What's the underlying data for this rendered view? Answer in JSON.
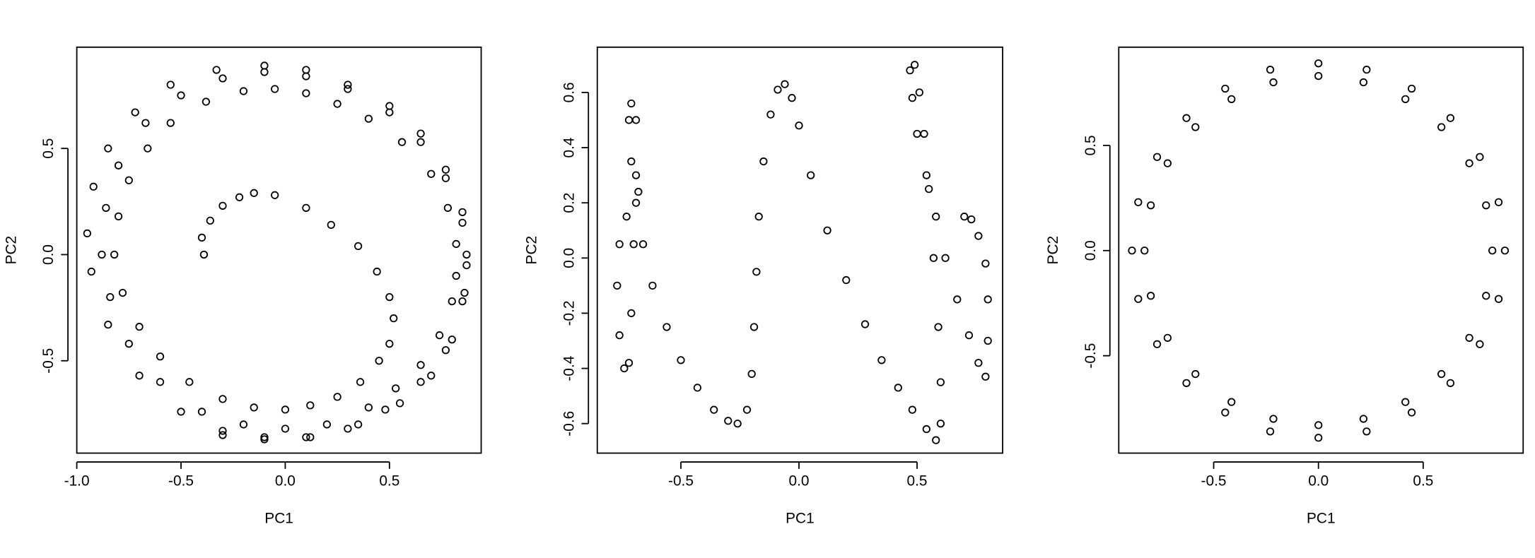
{
  "chart_data": [
    {
      "type": "scatter",
      "xlabel": "PC1",
      "ylabel": "PC2",
      "xlim": [
        -1.0,
        0.94
      ],
      "ylim": [
        -0.935,
        0.977
      ],
      "xticks": [
        {
          "value": -1.0,
          "label": "-1.0"
        },
        -0.5,
        {
          "value": 0,
          "label": "0.0"
        },
        0.5
      ],
      "yticks": [
        -0.5,
        {
          "value": 0,
          "label": "0.0"
        },
        0.5
      ],
      "x": [
        -0.39,
        -0.4,
        -0.36,
        -0.3,
        -0.22,
        -0.15,
        -0.05,
        0.1,
        0.22,
        0.35,
        0.44,
        0.5,
        0.52,
        0.5,
        0.45,
        0.36,
        0.25,
        0.12,
        0.0,
        -0.15,
        -0.3,
        -0.46,
        -0.6,
        -0.7,
        -0.78,
        -0.82,
        -0.8,
        -0.75,
        -0.66,
        -0.55,
        -0.38,
        -0.2,
        -0.05,
        0.1,
        0.25,
        0.4,
        0.56,
        0.7,
        0.78,
        0.82,
        0.82,
        0.8,
        0.74,
        0.65,
        0.53,
        0.4,
        0.2,
        0.0,
        -0.2,
        -0.4,
        -0.6,
        -0.75,
        -0.84,
        -0.88,
        -0.86,
        -0.8,
        -0.67,
        -0.5,
        -0.3,
        -0.1,
        0.1,
        0.3,
        0.5,
        0.65,
        0.77,
        0.85,
        0.87,
        0.85,
        0.77,
        0.65,
        0.48,
        0.3,
        0.1,
        -0.1,
        -0.3,
        -0.5,
        -0.7,
        -0.85,
        -0.93,
        -0.95,
        -0.92,
        -0.85,
        -0.72,
        -0.55,
        -0.33,
        -0.1,
        0.1,
        0.3,
        0.5,
        0.65,
        0.77,
        0.85,
        0.87,
        0.86,
        0.8,
        0.7,
        0.55,
        0.35,
        0.12,
        -0.1,
        -0.3
      ],
      "values": [
        0.0,
        0.08,
        0.16,
        0.23,
        0.27,
        0.29,
        0.28,
        0.22,
        0.14,
        0.04,
        -0.08,
        -0.2,
        -0.3,
        -0.42,
        -0.5,
        -0.6,
        -0.67,
        -0.71,
        -0.73,
        -0.72,
        -0.68,
        -0.6,
        -0.48,
        -0.34,
        -0.18,
        0.0,
        0.18,
        0.35,
        0.5,
        0.62,
        0.72,
        0.77,
        0.78,
        0.76,
        0.71,
        0.64,
        0.53,
        0.38,
        0.22,
        0.05,
        -0.1,
        -0.22,
        -0.38,
        -0.52,
        -0.63,
        -0.72,
        -0.8,
        -0.82,
        -0.8,
        -0.74,
        -0.6,
        -0.42,
        -0.2,
        0.0,
        0.22,
        0.42,
        0.62,
        0.75,
        0.83,
        0.86,
        0.84,
        0.78,
        0.67,
        0.53,
        0.36,
        0.15,
        -0.05,
        -0.22,
        -0.45,
        -0.6,
        -0.73,
        -0.82,
        -0.86,
        -0.86,
        -0.83,
        -0.74,
        -0.57,
        -0.33,
        -0.08,
        0.1,
        0.32,
        0.5,
        0.67,
        0.8,
        0.87,
        0.89,
        0.87,
        0.8,
        0.7,
        0.57,
        0.4,
        0.2,
        0.0,
        -0.18,
        -0.4,
        -0.57,
        -0.7,
        -0.8,
        -0.86,
        -0.87,
        -0.85
      ]
    },
    {
      "type": "scatter",
      "xlabel": "PC1",
      "ylabel": "PC2",
      "xlim": [
        -0.854,
        0.8625
      ],
      "ylim": [
        -0.707,
        0.764
      ],
      "xticks": [
        -0.5,
        {
          "value": 0,
          "label": "0.0"
        },
        0.5
      ],
      "yticks": [
        -0.6,
        -0.4,
        -0.2,
        {
          "value": 0,
          "label": "0.0"
        },
        0.2,
        0.4,
        0.6
      ],
      "x": [
        0.7,
        0.73,
        0.76,
        0.79,
        0.8,
        0.8,
        0.79,
        0.76,
        0.72,
        0.67,
        0.62,
        0.58,
        0.54,
        0.5,
        0.48,
        0.47,
        0.49,
        0.51,
        0.53,
        0.55,
        0.57,
        0.59,
        0.6,
        0.6,
        0.58,
        0.54,
        0.48,
        0.42,
        0.35,
        0.28,
        0.2,
        0.12,
        0.05,
        0.0,
        -0.03,
        -0.06,
        -0.09,
        -0.12,
        -0.15,
        -0.17,
        -0.18,
        -0.19,
        -0.2,
        -0.22,
        -0.26,
        -0.3,
        -0.36,
        -0.43,
        -0.5,
        -0.56,
        -0.62,
        -0.66,
        -0.69,
        -0.71,
        -0.72,
        -0.71,
        -0.69,
        -0.69,
        -0.7,
        -0.71,
        -0.72,
        -0.74,
        -0.76,
        -0.77,
        -0.76,
        -0.73,
        -0.68
      ],
      "values": [
        0.15,
        0.14,
        0.08,
        -0.02,
        -0.15,
        -0.3,
        -0.43,
        -0.38,
        -0.28,
        -0.15,
        0.0,
        0.15,
        0.3,
        0.45,
        0.58,
        0.68,
        0.7,
        0.6,
        0.45,
        0.25,
        0.0,
        -0.25,
        -0.45,
        -0.6,
        -0.66,
        -0.62,
        -0.55,
        -0.47,
        -0.37,
        -0.24,
        -0.08,
        0.1,
        0.3,
        0.48,
        0.58,
        0.63,
        0.61,
        0.52,
        0.35,
        0.15,
        -0.05,
        -0.25,
        -0.42,
        -0.55,
        -0.6,
        -0.59,
        -0.55,
        -0.47,
        -0.37,
        -0.25,
        -0.1,
        0.05,
        0.2,
        0.35,
        0.5,
        0.56,
        0.5,
        0.3,
        0.05,
        -0.2,
        -0.38,
        -0.4,
        -0.28,
        -0.1,
        0.05,
        0.15,
        0.24
      ]
    },
    {
      "type": "scatter",
      "xlabel": "PC1",
      "ylabel": "PC2",
      "xlim": [
        -0.953,
        0.977
      ],
      "ylim": [
        -0.963,
        0.967
      ],
      "xticks": [
        -0.5,
        {
          "value": 0,
          "label": "0.0"
        },
        0.5
      ],
      "yticks": [
        -0.5,
        {
          "value": 0,
          "label": "0.0"
        },
        0.5
      ],
      "x": [
        0.89,
        0.86,
        0.77,
        0.63,
        0.445,
        0.23,
        0,
        -0.23,
        -0.445,
        -0.63,
        -0.77,
        -0.86,
        -0.89,
        -0.86,
        -0.77,
        -0.63,
        -0.445,
        -0.23,
        0,
        0.23,
        0.445,
        0.63,
        0.77,
        0.86,
        0.83,
        0.8,
        0.72,
        0.587,
        0.415,
        0.215,
        0,
        -0.215,
        -0.415,
        -0.587,
        -0.72,
        -0.8,
        -0.83,
        -0.8,
        -0.72,
        -0.587,
        -0.415,
        -0.215,
        0,
        0.215,
        0.415,
        0.587,
        0.72,
        0.8
      ],
      "values": [
        0,
        0.23,
        0.445,
        0.63,
        0.77,
        0.86,
        0.89,
        0.86,
        0.77,
        0.63,
        0.445,
        0.23,
        0,
        -0.23,
        -0.445,
        -0.63,
        -0.77,
        -0.86,
        -0.89,
        -0.86,
        -0.77,
        -0.63,
        -0.445,
        -0.23,
        0,
        0.215,
        0.415,
        0.587,
        0.72,
        0.8,
        0.83,
        0.8,
        0.72,
        0.587,
        0.415,
        0.215,
        0,
        -0.215,
        -0.415,
        -0.587,
        -0.72,
        -0.8,
        -0.83,
        -0.8,
        -0.72,
        -0.587,
        -0.415,
        -0.215
      ]
    }
  ]
}
